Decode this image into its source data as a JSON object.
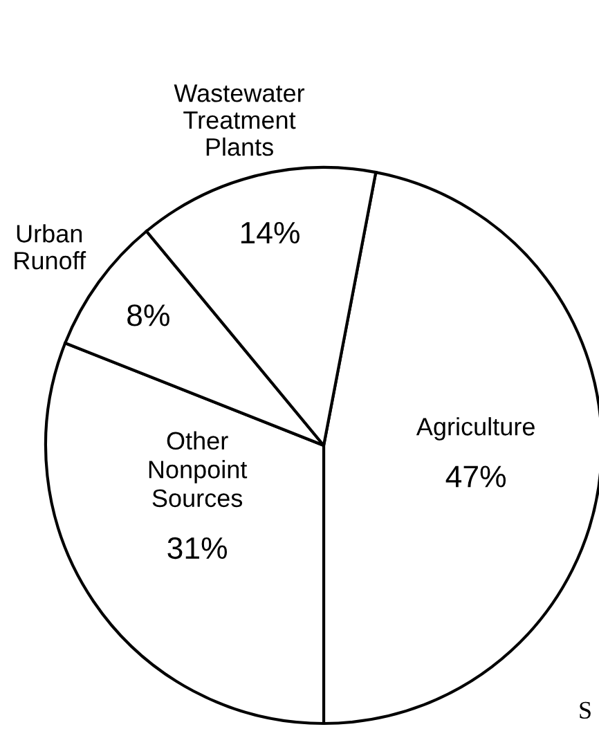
{
  "chart_data": {
    "type": "pie",
    "categories": [
      "Agriculture",
      "Other Nonpoint Sources",
      "Urban Runoff",
      "Wastewater Treatment Plants"
    ],
    "values": [
      47,
      31,
      8,
      14
    ],
    "value_labels": [
      "47%",
      "31%",
      "8%",
      "14%"
    ],
    "colors": [
      "#ffffff",
      "#ffffff",
      "#ffffff",
      "#ffffff"
    ],
    "annotations": [
      "S"
    ]
  }
}
